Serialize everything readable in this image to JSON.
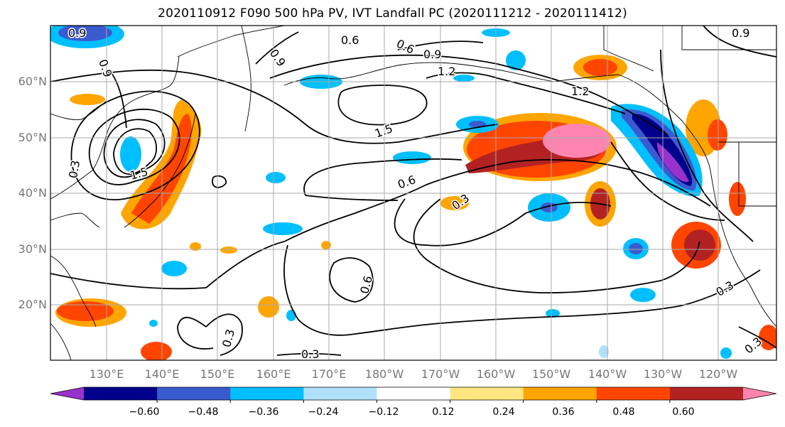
{
  "title": "2020110912 F090 500 hPa PV, IVT Landfall PC (2020111212 - 2020111412)",
  "lat_labels": [
    "60°N",
    "50°N",
    "40°N",
    "30°N",
    "20°N"
  ],
  "lon_labels": [
    "130°E",
    "140°E",
    "150°E",
    "160°E",
    "170°E",
    "180°W",
    "170°W",
    "160°W",
    "150°W",
    "140°W",
    "130°W",
    "120°W"
  ],
  "contour_labels": [
    "0.9",
    "0.6",
    "0.6",
    "0.9",
    "1.2",
    "1.2",
    "0.9",
    "0.9",
    "1.5",
    "0.9",
    "1.5",
    "0.3",
    "0.6",
    "0.3",
    "0.6",
    "0.3",
    "0.3",
    "0.3",
    "0.3"
  ],
  "colorbar": {
    "ticks": [
      "−0.60",
      "−0.48",
      "−0.36",
      "−0.24",
      "−0.12",
      "0.12",
      "0.24",
      "0.36",
      "0.48",
      "0.60"
    ],
    "colors": [
      "#9932cc",
      "#00008b",
      "#3a5bcf",
      "#00bfff",
      "#b0e0fa",
      "#ffffff",
      "#ffe680",
      "#ffa500",
      "#ff4500",
      "#b22222",
      "#ff85b0"
    ]
  },
  "colors": {
    "grid": "#aaaaaa",
    "contour": "#000000",
    "axis_label": "#777777"
  }
}
